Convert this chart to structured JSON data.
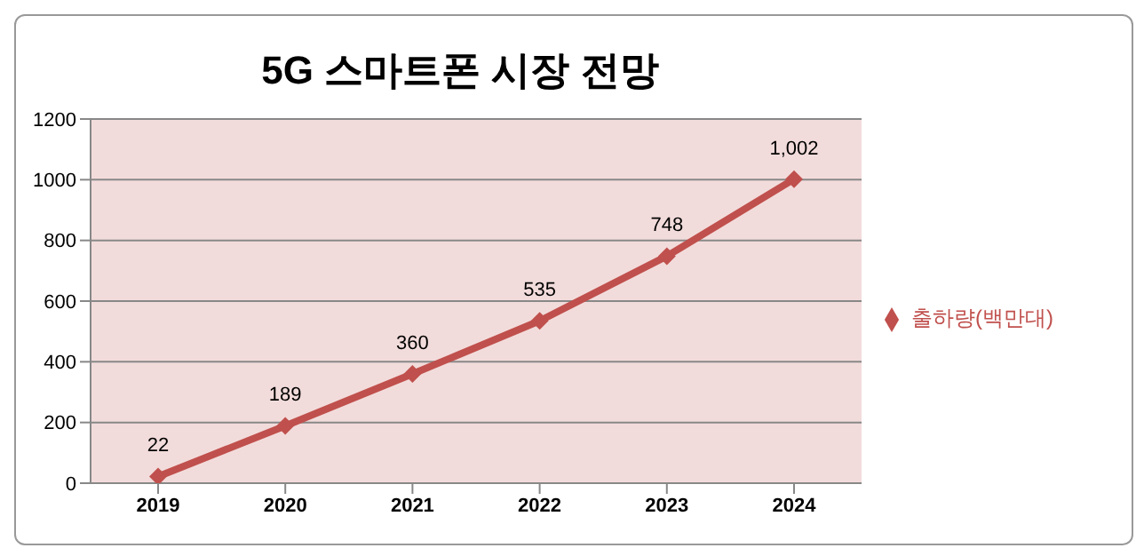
{
  "chart_data": {
    "type": "line",
    "title": "5G 스마트폰 시장 전망",
    "categories": [
      "2019",
      "2020",
      "2021",
      "2022",
      "2023",
      "2024"
    ],
    "series": [
      {
        "name": "출하량(백만대)",
        "color": "#c0504d",
        "values": [
          22,
          189,
          360,
          535,
          748,
          1002
        ],
        "value_labels": [
          "22",
          "189",
          "360",
          "535",
          "748",
          "1,002"
        ]
      }
    ],
    "ylim": [
      0,
      1200
    ],
    "yticks": [
      0,
      200,
      400,
      600,
      800,
      1000,
      1200
    ],
    "grid": "y",
    "legend": "right",
    "marker": "diamond",
    "line_style": "solid"
  }
}
